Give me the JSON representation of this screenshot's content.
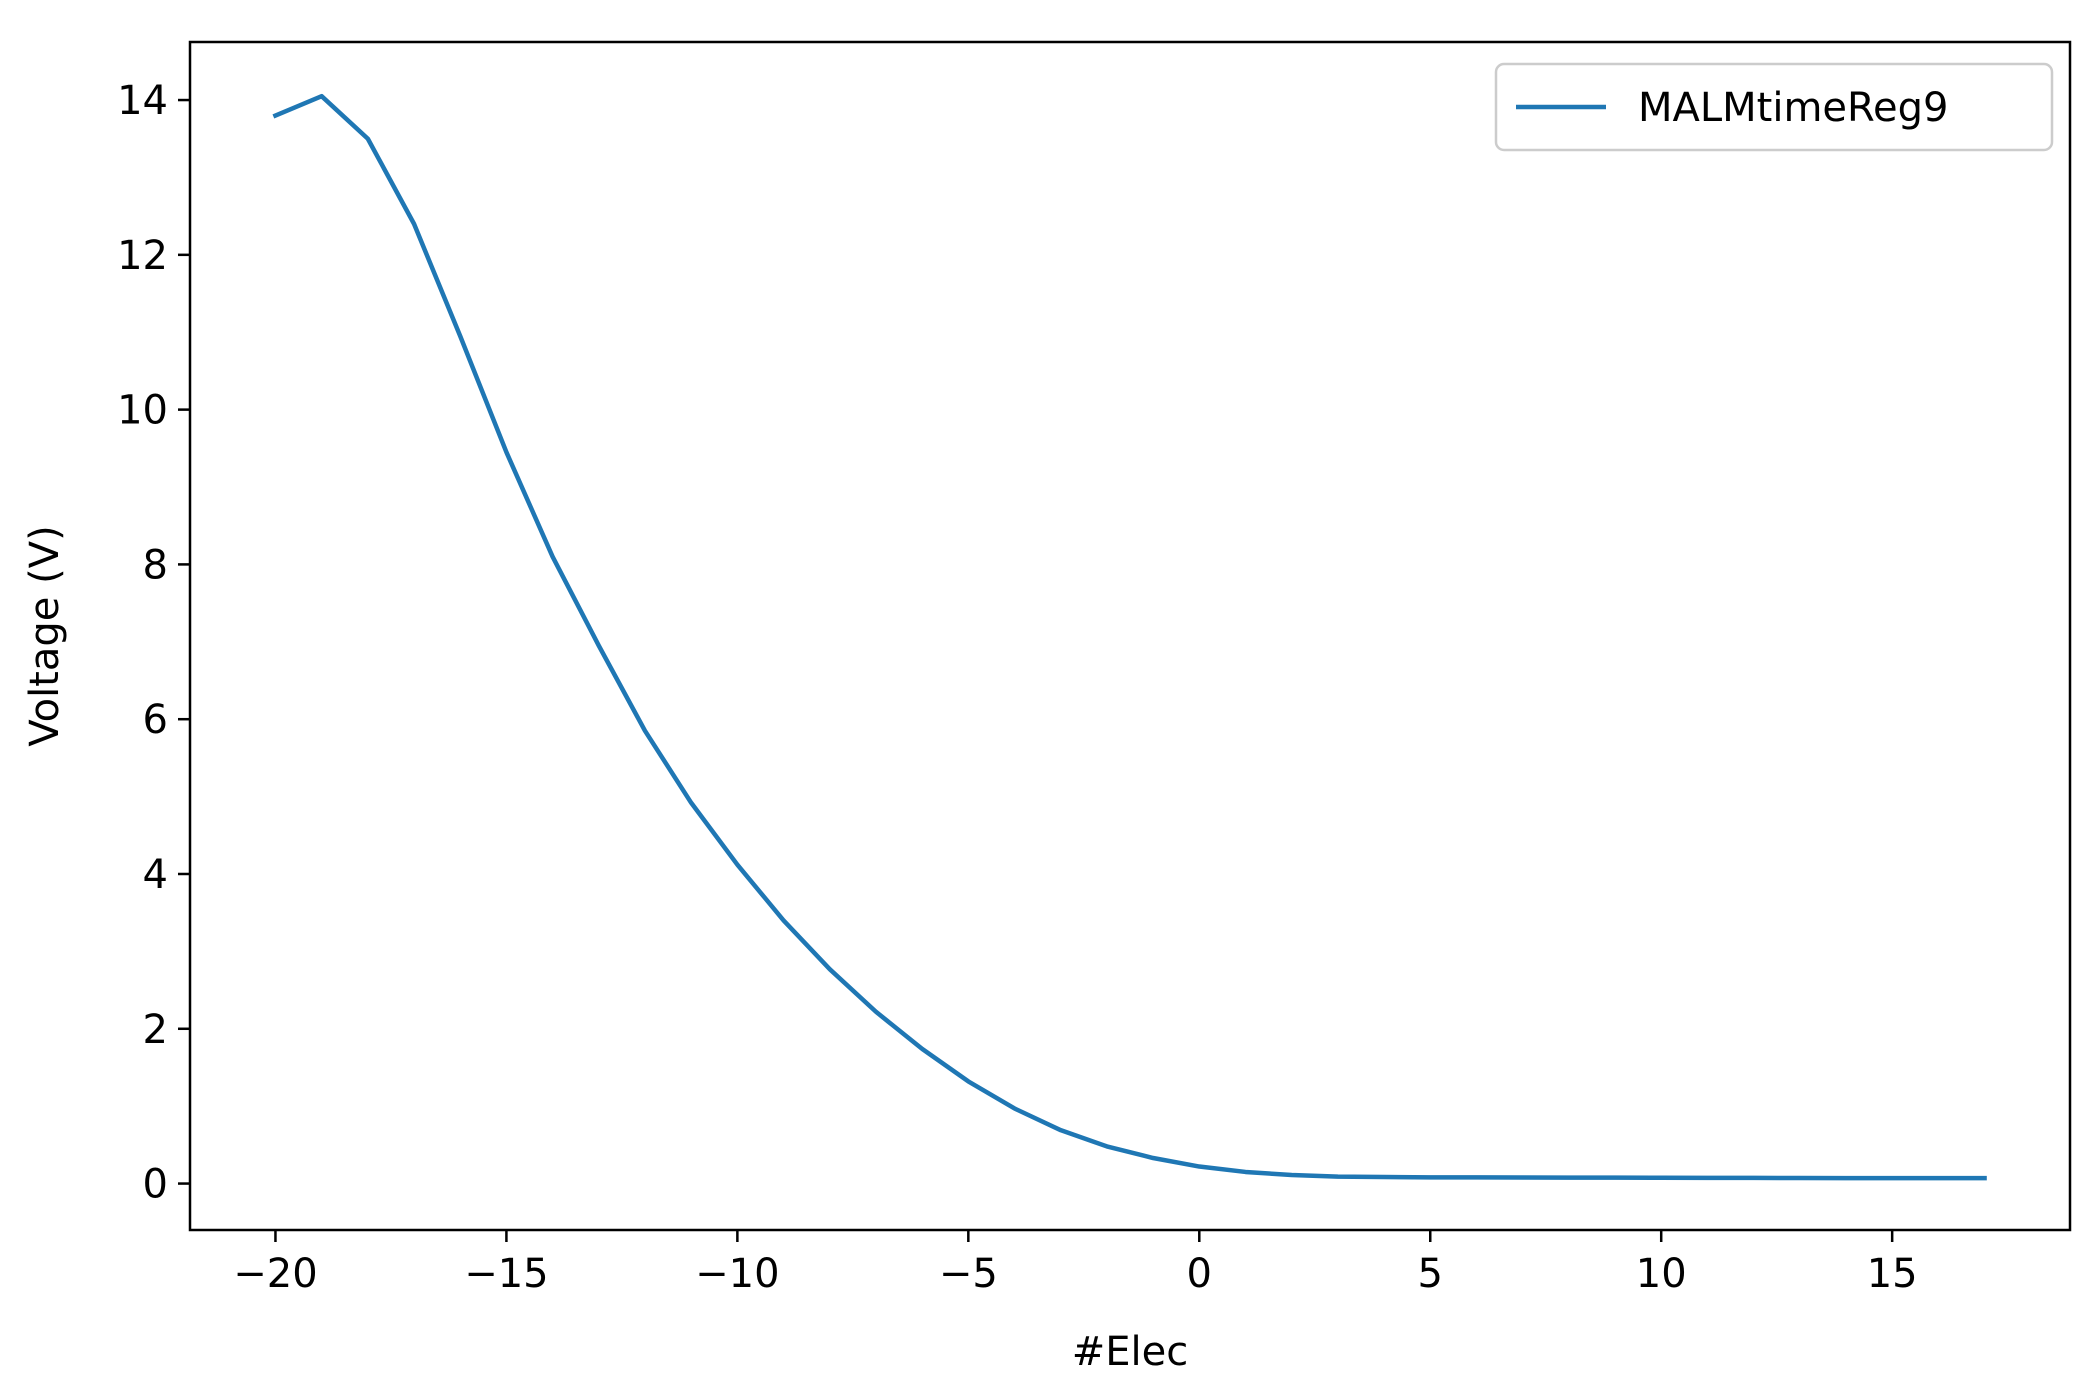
{
  "chart_data": {
    "type": "line",
    "title": "",
    "xlabel": "#Elec",
    "ylabel": "Voltage (V)",
    "xlim": [
      -21.85,
      18.85
    ],
    "ylim": [
      -0.6,
      14.75
    ],
    "xticks": [
      -20,
      -15,
      -10,
      -5,
      0,
      5,
      10,
      15
    ],
    "xtick_labels": [
      "−20",
      "−15",
      "−10",
      "−5",
      "0",
      "5",
      "10",
      "15"
    ],
    "yticks": [
      0,
      2,
      4,
      6,
      8,
      10,
      12,
      14
    ],
    "ytick_labels": [
      "0",
      "2",
      "4",
      "6",
      "8",
      "10",
      "12",
      "14"
    ],
    "grid": false,
    "legend_position": "upper-right",
    "series": [
      {
        "name": "MALMtimeReg9",
        "color": "#1f77b4",
        "x": [
          -20,
          -19,
          -18,
          -17,
          -16,
          -15,
          -14,
          -13,
          -12,
          -11,
          -10,
          -9,
          -8,
          -7,
          -6,
          -5,
          -4,
          -3,
          -2,
          -1,
          0,
          1,
          2,
          3,
          4,
          5,
          6,
          7,
          8,
          9,
          10,
          11,
          12,
          13,
          14,
          15,
          16,
          17
        ],
        "y": [
          13.8,
          14.05,
          13.5,
          12.4,
          10.95,
          9.45,
          8.1,
          6.95,
          5.85,
          4.92,
          4.12,
          3.4,
          2.77,
          2.22,
          1.74,
          1.32,
          0.97,
          0.69,
          0.48,
          0.33,
          0.22,
          0.15,
          0.11,
          0.09,
          0.085,
          0.08,
          0.08,
          0.078,
          0.077,
          0.076,
          0.075,
          0.074,
          0.073,
          0.072,
          0.071,
          0.07,
          0.07,
          0.07
        ]
      }
    ]
  }
}
